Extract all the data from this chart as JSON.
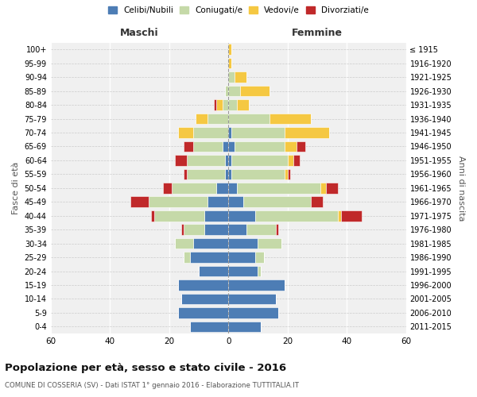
{
  "age_groups": [
    "0-4",
    "5-9",
    "10-14",
    "15-19",
    "20-24",
    "25-29",
    "30-34",
    "35-39",
    "40-44",
    "45-49",
    "50-54",
    "55-59",
    "60-64",
    "65-69",
    "70-74",
    "75-79",
    "80-84",
    "85-89",
    "90-94",
    "95-99",
    "100+"
  ],
  "birth_years": [
    "2011-2015",
    "2006-2010",
    "2001-2005",
    "1996-2000",
    "1991-1995",
    "1986-1990",
    "1981-1985",
    "1976-1980",
    "1971-1975",
    "1966-1970",
    "1961-1965",
    "1956-1960",
    "1951-1955",
    "1946-1950",
    "1941-1945",
    "1936-1940",
    "1931-1935",
    "1926-1930",
    "1921-1925",
    "1916-1920",
    "≤ 1915"
  ],
  "male": {
    "celibi": [
      13,
      17,
      16,
      17,
      10,
      13,
      12,
      8,
      8,
      7,
      4,
      1,
      1,
      2,
      0,
      0,
      0,
      0,
      0,
      0,
      0
    ],
    "coniugati": [
      0,
      0,
      0,
      0,
      0,
      2,
      6,
      7,
      17,
      20,
      15,
      13,
      13,
      10,
      12,
      7,
      2,
      1,
      0,
      0,
      0
    ],
    "vedovi": [
      0,
      0,
      0,
      0,
      0,
      0,
      0,
      0,
      0,
      0,
      0,
      0,
      0,
      0,
      5,
      4,
      2,
      0,
      0,
      0,
      0
    ],
    "divorziati": [
      0,
      0,
      0,
      0,
      0,
      0,
      0,
      1,
      1,
      6,
      3,
      1,
      4,
      3,
      0,
      0,
      1,
      0,
      0,
      0,
      0
    ]
  },
  "female": {
    "nubili": [
      11,
      17,
      16,
      19,
      10,
      9,
      10,
      6,
      9,
      5,
      3,
      1,
      1,
      2,
      1,
      0,
      0,
      0,
      0,
      0,
      0
    ],
    "coniugate": [
      0,
      0,
      0,
      0,
      1,
      3,
      8,
      10,
      28,
      23,
      28,
      18,
      19,
      17,
      18,
      14,
      3,
      4,
      2,
      0,
      0
    ],
    "vedove": [
      0,
      0,
      0,
      0,
      0,
      0,
      0,
      0,
      1,
      0,
      2,
      1,
      2,
      4,
      15,
      14,
      4,
      10,
      4,
      1,
      1
    ],
    "divorziate": [
      0,
      0,
      0,
      0,
      0,
      0,
      0,
      1,
      7,
      4,
      4,
      1,
      2,
      3,
      0,
      0,
      0,
      0,
      0,
      0,
      0
    ]
  },
  "colors": {
    "celibi": "#4d7db5",
    "coniugati": "#c5d9a8",
    "vedovi": "#f5c842",
    "divorziati": "#c0292a"
  },
  "title": "Popolazione per età, sesso e stato civile - 2016",
  "subtitle": "COMUNE DI COSSERIA (SV) - Dati ISTAT 1° gennaio 2016 - Elaborazione TUTTITALIA.IT",
  "xlabel_left": "Maschi",
  "xlabel_right": "Femmine",
  "ylabel_left": "Fasce di età",
  "ylabel_right": "Anni di nascita",
  "xlim": 60,
  "bg_color": "#ffffff",
  "plot_bg": "#f0f0f0",
  "legend_labels": [
    "Celibi/Nubili",
    "Coniugati/e",
    "Vedovi/e",
    "Divorziati/e"
  ]
}
